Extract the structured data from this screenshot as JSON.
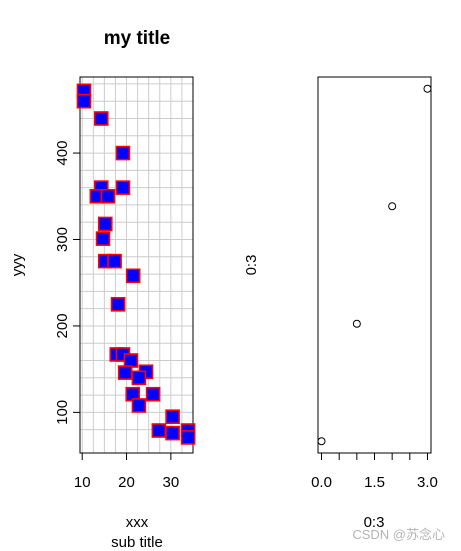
{
  "watermark": "CSDN @苏念心",
  "chart_data": [
    {
      "type": "scatter",
      "title": "my title",
      "subtitle": "sub title",
      "xlabel": "xxx",
      "ylabel": "yyy",
      "xlim": [
        9.5,
        35
      ],
      "ylim": [
        53,
        488
      ],
      "x_ticks": [
        10,
        20,
        30
      ],
      "y_ticks": [
        100,
        200,
        300,
        400
      ],
      "grid": true,
      "grid_x": [
        10,
        12.5,
        15,
        17.5,
        20,
        22.5,
        25,
        27.5,
        30,
        32.5
      ],
      "grid_y": [
        80,
        100,
        120,
        140,
        160,
        180,
        200,
        220,
        240,
        260,
        280,
        300,
        320,
        340,
        360,
        380,
        400,
        420,
        440,
        460,
        480
      ],
      "marker": "filled-square",
      "marker_fill": "#0000ff",
      "marker_edge": "#ff0000",
      "points": [
        {
          "x": 10.4,
          "y": 472
        },
        {
          "x": 10.4,
          "y": 460
        },
        {
          "x": 14.3,
          "y": 440
        },
        {
          "x": 19.2,
          "y": 400
        },
        {
          "x": 14.3,
          "y": 360
        },
        {
          "x": 19.2,
          "y": 360
        },
        {
          "x": 13.3,
          "y": 350
        },
        {
          "x": 15.8,
          "y": 350
        },
        {
          "x": 15.2,
          "y": 318
        },
        {
          "x": 14.7,
          "y": 301
        },
        {
          "x": 15.2,
          "y": 275
        },
        {
          "x": 17.3,
          "y": 275
        },
        {
          "x": 21.5,
          "y": 258
        },
        {
          "x": 18.1,
          "y": 225
        },
        {
          "x": 17.8,
          "y": 167
        },
        {
          "x": 19.2,
          "y": 167
        },
        {
          "x": 21.0,
          "y": 160
        },
        {
          "x": 24.4,
          "y": 147
        },
        {
          "x": 19.7,
          "y": 146
        },
        {
          "x": 22.8,
          "y": 140
        },
        {
          "x": 21.4,
          "y": 121
        },
        {
          "x": 26.0,
          "y": 121
        },
        {
          "x": 22.8,
          "y": 108
        },
        {
          "x": 30.4,
          "y": 95
        },
        {
          "x": 27.3,
          "y": 79
        },
        {
          "x": 30.4,
          "y": 76
        },
        {
          "x": 33.9,
          "y": 79
        },
        {
          "x": 33.9,
          "y": 71
        }
      ]
    },
    {
      "type": "scatter",
      "title": "",
      "xlabel": "0:3",
      "ylabel": "0:3",
      "xlim": [
        -0.1,
        3.1
      ],
      "ylim": [
        -0.1,
        3.1
      ],
      "x_ticks": [
        "0.0",
        "1.5",
        "3.0"
      ],
      "x_tick_values": [
        0,
        1.5,
        3
      ],
      "y_ticks": [],
      "grid": false,
      "marker": "open-circle",
      "points": [
        {
          "x": 0,
          "y": 0
        },
        {
          "x": 1,
          "y": 1
        },
        {
          "x": 2,
          "y": 2
        },
        {
          "x": 3,
          "y": 3
        }
      ]
    }
  ]
}
